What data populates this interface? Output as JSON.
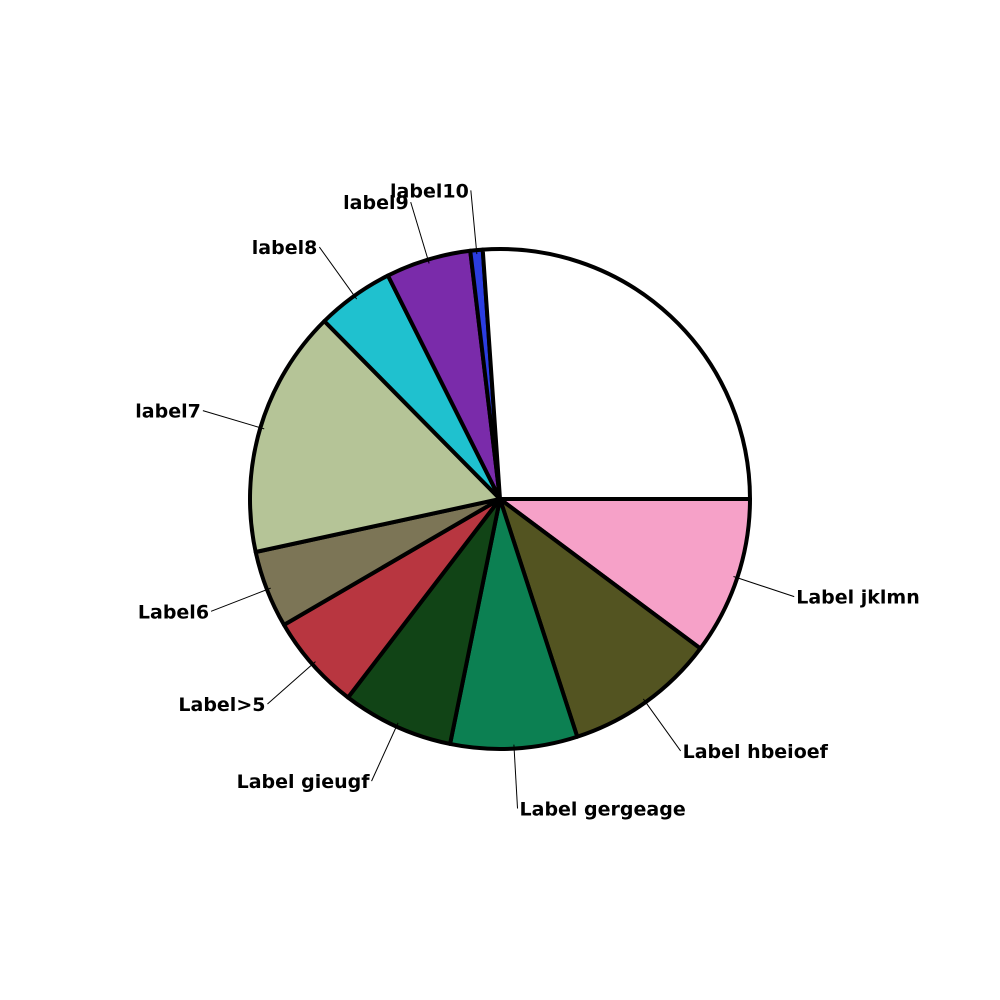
{
  "chart_data": {
    "type": "pie",
    "start_angle_deg": 0,
    "direction": "clockwise",
    "slices": [
      {
        "label": "Label jklmn",
        "value": 10.2,
        "color": "#f6a1c8"
      },
      {
        "label": "Label hbeioef",
        "value": 9.8,
        "color": "#535421"
      },
      {
        "label": "Label gergeage",
        "value": 8.2,
        "color": "#0c8052"
      },
      {
        "label": "Label gieugf",
        "value": 7.2,
        "color": "#114416"
      },
      {
        "label": "Label>5",
        "value": 6.2,
        "color": "#b83640"
      },
      {
        "label": "Label6",
        "value": 5.0,
        "color": "#7c7556"
      },
      {
        "label": "label7",
        "value": 16.0,
        "color": "#b5c497"
      },
      {
        "label": "label8",
        "value": 5.0,
        "color": "#1fc1cf"
      },
      {
        "label": "label9",
        "value": 5.5,
        "color": "#7a2baa"
      },
      {
        "label": "label10",
        "value": 0.8,
        "color": "#2b3de0"
      },
      {
        "label": "",
        "value": 26.1,
        "color": "#ffffff"
      }
    ]
  }
}
